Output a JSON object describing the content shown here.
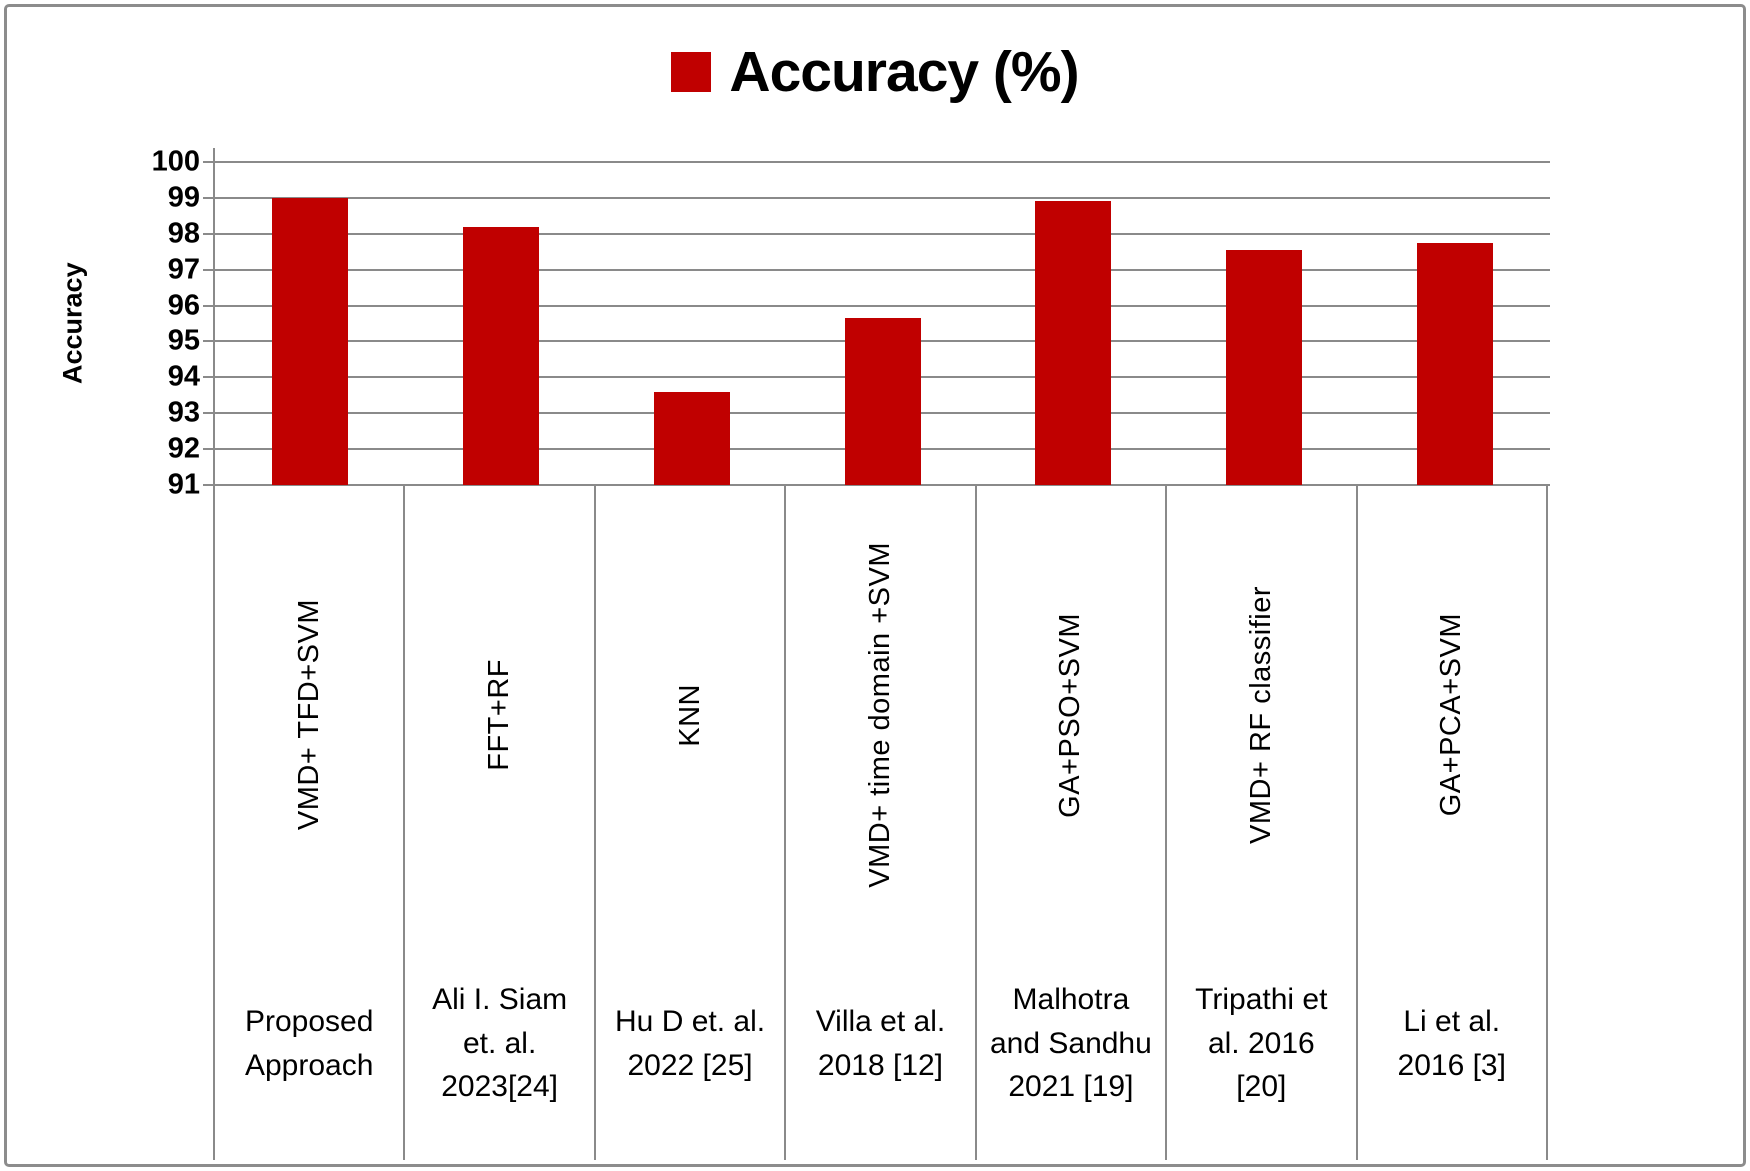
{
  "figure": {
    "background": "#ffffff",
    "border_color": "#8c8c8c"
  },
  "chart_data": {
    "type": "bar",
    "title": "Accuracy (%)",
    "legend": {
      "label": "Accuracy (%)",
      "marker_color": "#c00000",
      "position": "top"
    },
    "ylabel": "Accuracy",
    "ylim": [
      91,
      100
    ],
    "yticks": [
      91,
      92,
      93,
      94,
      95,
      96,
      97,
      98,
      99,
      100
    ],
    "grid": "horizontal-major",
    "gridline_color": "#8a8a8a",
    "bar_color": "#c00000",
    "categories": [
      "VMD+ TFD+SVM",
      "FFT+RF",
      "KNN",
      "VMD+ time domain +SVM",
      "GA+PSO+SVM",
      "VMD+ RF classifier",
      "GA+PCA+SVM"
    ],
    "category_sources": [
      [
        "Proposed",
        "Approach"
      ],
      [
        "Ali I. Siam",
        "et. al.",
        "2023[24]"
      ],
      [
        "Hu D et. al.",
        "2022 [25]"
      ],
      [
        "Villa et al.",
        "2018 [12]"
      ],
      [
        "Malhotra",
        "and Sandhu",
        "2021 [19]"
      ],
      [
        "Tripathi et",
        "al. 2016",
        "[20]"
      ],
      [
        "Li et al.",
        "2016 [3]"
      ]
    ],
    "values": [
      99,
      98.2,
      93.6,
      95.65,
      98.9,
      97.55,
      97.75
    ]
  }
}
